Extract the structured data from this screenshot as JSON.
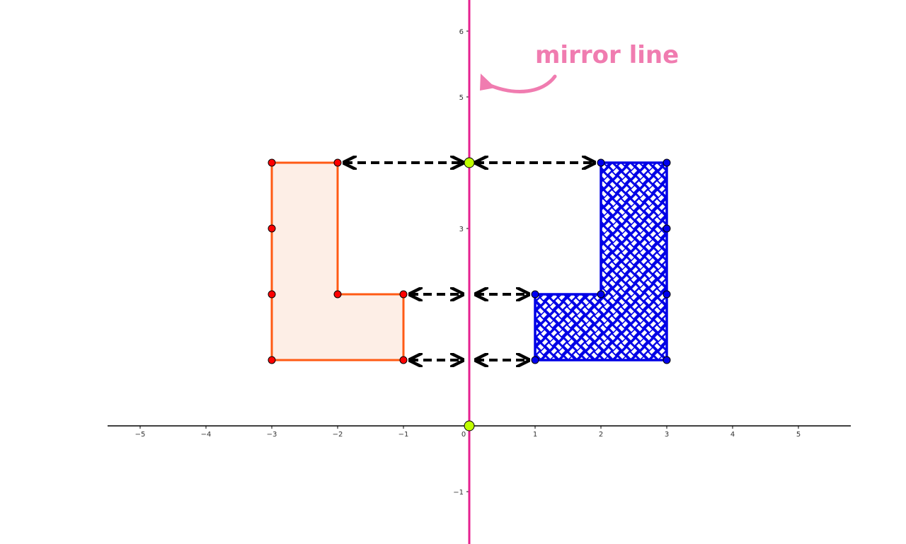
{
  "diagram": {
    "type": "coordinate-grid-reflection",
    "grid": false,
    "x_range": [
      -5.6,
      5.8
    ],
    "y_range": [
      -1.8,
      6.4
    ],
    "x_ticks": [
      -5,
      -4,
      -3,
      -2,
      -1,
      0,
      1,
      2,
      3,
      4,
      5
    ],
    "y_ticks": [
      -1,
      3,
      4,
      5,
      6
    ],
    "x_tick_labels": [
      "−5",
      "−4",
      "−3",
      "−2",
      "−1",
      "0",
      "1",
      "2",
      "3",
      "4",
      "5"
    ],
    "y_tick_labels": [
      "−1",
      "3",
      "4",
      "5",
      "6"
    ],
    "mirror_line": {
      "x": 0,
      "label": "mirror line",
      "color": "#e6218f",
      "label_color": "#f07cb0"
    },
    "original_shape": {
      "vertices": [
        [
          -3,
          4
        ],
        [
          -2,
          4
        ],
        [
          -2,
          2
        ],
        [
          -1,
          2
        ],
        [
          -1,
          1
        ],
        [
          -3,
          1
        ]
      ],
      "extra_points": [
        [
          -3,
          3
        ],
        [
          -3,
          2
        ]
      ],
      "stroke": "#ff5a14",
      "fill": "#fdeee6",
      "point_color": "#ff0000"
    },
    "reflected_shape": {
      "vertices": [
        [
          3,
          4
        ],
        [
          2,
          4
        ],
        [
          2,
          2
        ],
        [
          1,
          2
        ],
        [
          1,
          1
        ],
        [
          3,
          1
        ]
      ],
      "extra_points": [
        [
          3,
          3
        ],
        [
          3,
          2
        ]
      ],
      "stroke": "#0000e6",
      "fill": "#0000e6",
      "pattern": "weave",
      "point_color": "#0000ee"
    },
    "mirror_points": [
      [
        0,
        4
      ],
      [
        0,
        0
      ]
    ],
    "mirror_point_color": "#bfff00",
    "distance_arrows": [
      {
        "from": [
          -2,
          4
        ],
        "to": [
          0,
          4
        ]
      },
      {
        "from": [
          0,
          4
        ],
        "to": [
          2,
          4
        ]
      },
      {
        "from": [
          -1,
          2
        ],
        "to": [
          0,
          2
        ]
      },
      {
        "from": [
          0,
          2
        ],
        "to": [
          1,
          2
        ]
      },
      {
        "from": [
          -1,
          1
        ],
        "to": [
          0,
          1
        ]
      },
      {
        "from": [
          0,
          1
        ],
        "to": [
          1,
          1
        ]
      }
    ]
  }
}
